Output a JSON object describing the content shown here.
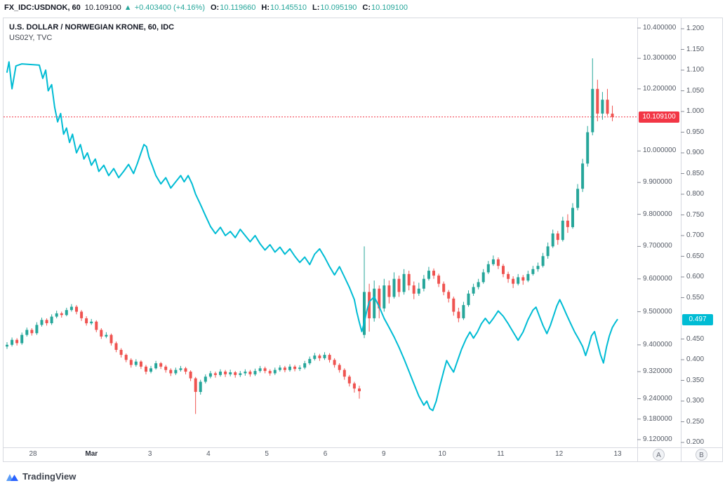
{
  "header": {
    "symbol": "FX_IDC:USDNOK, 60",
    "last_price": "10.109100",
    "change_arrow": "▲",
    "change": "+0.403400 (+4.16%)",
    "ohlc": [
      {
        "label": "O:",
        "value": "10.119660"
      },
      {
        "label": "H:",
        "value": "10.145510"
      },
      {
        "label": "L:",
        "value": "10.095190"
      },
      {
        "label": "C:",
        "value": "10.109100"
      }
    ]
  },
  "legend": {
    "line1": "U.S. DOLLAR / NORWEGIAN KRONE, 60, IDC",
    "line2": "US02Y, TVC"
  },
  "axis_buttons": {
    "a": "A",
    "b": "B"
  },
  "footer": {
    "logo_text": "TradingView"
  },
  "chart_data": {
    "type": "candlestick+line",
    "title": "U.S. DOLLAR / NORWEGIAN KRONE, 60, IDC",
    "overlay_series_name": "US02Y, TVC",
    "colors": {
      "up": "#26a69a",
      "down": "#ef5350",
      "line": "#00bcd4",
      "last_line": "#f23645"
    },
    "y_axis_a": {
      "scale": "log",
      "range": [
        9.12,
        10.4
      ],
      "labels": [
        [
          "10.400000",
          10.4
        ],
        [
          "10.300000",
          10.3
        ],
        [
          "10.200000",
          10.2
        ],
        [
          "10.000000",
          10.0
        ],
        [
          "9.900000",
          9.9
        ],
        [
          "9.800000",
          9.8
        ],
        [
          "9.700000",
          9.7
        ],
        [
          "9.600000",
          9.6
        ],
        [
          "9.500000",
          9.5
        ],
        [
          "9.400000",
          9.4
        ],
        [
          "9.320000",
          9.32
        ],
        [
          "9.240000",
          9.24
        ],
        [
          "9.180000",
          9.18
        ],
        [
          "9.120000",
          9.12
        ]
      ]
    },
    "y_axis_b": {
      "scale": "linear",
      "range": [
        0.2,
        1.2
      ],
      "labels": [
        [
          "1.200",
          1.2
        ],
        [
          "1.150",
          1.15
        ],
        [
          "1.100",
          1.1
        ],
        [
          "1.050",
          1.05
        ],
        [
          "1.000",
          1.0
        ],
        [
          "0.950",
          0.95
        ],
        [
          "0.900",
          0.9
        ],
        [
          "0.850",
          0.85
        ],
        [
          "0.800",
          0.8
        ],
        [
          "0.750",
          0.75
        ],
        [
          "0.700",
          0.7
        ],
        [
          "0.650",
          0.65
        ],
        [
          "0.600",
          0.6
        ],
        [
          "0.550",
          0.55
        ],
        [
          "0.450",
          0.45
        ],
        [
          "0.400",
          0.4
        ],
        [
          "0.350",
          0.35
        ],
        [
          "0.300",
          0.3
        ],
        [
          "0.250",
          0.25
        ],
        [
          "0.200",
          0.2
        ]
      ]
    },
    "x_axis": {
      "labels": [
        "28",
        "Mar",
        "3",
        "4",
        "5",
        "6",
        "9",
        "10",
        "11",
        "12",
        "13"
      ]
    },
    "last_price": {
      "label": "10.109100",
      "value": 10.1091
    },
    "line_badge": {
      "label": "0.497",
      "value": 0.497
    },
    "candles": [
      [
        9.395,
        9.408,
        9.388,
        9.4
      ],
      [
        9.4,
        9.422,
        9.395,
        9.415
      ],
      [
        9.415,
        9.42,
        9.398,
        9.405
      ],
      [
        9.405,
        9.437,
        9.4,
        9.43
      ],
      [
        9.43,
        9.452,
        9.425,
        9.445
      ],
      [
        9.445,
        9.45,
        9.428,
        9.435
      ],
      [
        9.435,
        9.468,
        9.43,
        9.46
      ],
      [
        9.46,
        9.482,
        9.455,
        9.475
      ],
      [
        9.475,
        9.48,
        9.458,
        9.465
      ],
      [
        9.465,
        9.492,
        9.46,
        9.485
      ],
      [
        9.485,
        9.503,
        9.48,
        9.495
      ],
      [
        9.495,
        9.5,
        9.482,
        9.49
      ],
      [
        9.49,
        9.512,
        9.486,
        9.505
      ],
      [
        9.505,
        9.523,
        9.5,
        9.515
      ],
      [
        9.515,
        9.52,
        9.492,
        9.5
      ],
      [
        9.5,
        9.505,
        9.472,
        9.48
      ],
      [
        9.48,
        9.486,
        9.458,
        9.465
      ],
      [
        9.465,
        9.478,
        9.46,
        9.47
      ],
      [
        9.47,
        9.474,
        9.438,
        9.445
      ],
      [
        9.445,
        9.45,
        9.418,
        9.425
      ],
      [
        9.425,
        9.438,
        9.42,
        9.43
      ],
      [
        9.43,
        9.434,
        9.398,
        9.405
      ],
      [
        9.405,
        9.41,
        9.378,
        9.385
      ],
      [
        9.385,
        9.39,
        9.362,
        9.37
      ],
      [
        9.37,
        9.374,
        9.348,
        9.355
      ],
      [
        9.355,
        9.36,
        9.332,
        9.34
      ],
      [
        9.34,
        9.357,
        9.335,
        9.35
      ],
      [
        9.35,
        9.354,
        9.328,
        9.335
      ],
      [
        9.335,
        9.34,
        9.312,
        9.32
      ],
      [
        9.32,
        9.337,
        9.315,
        9.33
      ],
      [
        9.33,
        9.352,
        9.326,
        9.345
      ],
      [
        9.345,
        9.349,
        9.328,
        9.335
      ],
      [
        9.335,
        9.34,
        9.317,
        9.325
      ],
      [
        9.325,
        9.33,
        9.307,
        9.315
      ],
      [
        9.315,
        9.332,
        9.31,
        9.325
      ],
      [
        9.325,
        9.337,
        9.32,
        9.33
      ],
      [
        9.33,
        9.334,
        9.312,
        9.32
      ],
      [
        9.32,
        9.324,
        9.292,
        9.3
      ],
      [
        9.3,
        9.304,
        9.195,
        9.26
      ],
      [
        9.26,
        9.296,
        9.252,
        9.29
      ],
      [
        9.29,
        9.312,
        9.285,
        9.305
      ],
      [
        9.305,
        9.322,
        9.3,
        9.315
      ],
      [
        9.315,
        9.32,
        9.302,
        9.31
      ],
      [
        9.31,
        9.327,
        9.305,
        9.32
      ],
      [
        9.32,
        9.325,
        9.304,
        9.312
      ],
      [
        9.312,
        9.326,
        9.306,
        9.318
      ],
      [
        9.318,
        9.322,
        9.302,
        9.31
      ],
      [
        9.31,
        9.322,
        9.304,
        9.315
      ],
      [
        9.315,
        9.327,
        9.308,
        9.32
      ],
      [
        9.32,
        9.325,
        9.305,
        9.312
      ],
      [
        9.312,
        9.329,
        9.307,
        9.322
      ],
      [
        9.322,
        9.337,
        9.317,
        9.33
      ],
      [
        9.33,
        9.335,
        9.315,
        9.322
      ],
      [
        9.322,
        9.327,
        9.308,
        9.315
      ],
      [
        9.315,
        9.332,
        9.31,
        9.325
      ],
      [
        9.325,
        9.339,
        9.32,
        9.332
      ],
      [
        9.332,
        9.337,
        9.318,
        9.325
      ],
      [
        9.325,
        9.342,
        9.32,
        9.335
      ],
      [
        9.335,
        9.34,
        9.321,
        9.328
      ],
      [
        9.328,
        9.339,
        9.322,
        9.332
      ],
      [
        9.332,
        9.352,
        9.327,
        9.345
      ],
      [
        9.345,
        9.365,
        9.34,
        9.358
      ],
      [
        9.358,
        9.376,
        9.353,
        9.368
      ],
      [
        9.368,
        9.373,
        9.352,
        9.36
      ],
      [
        9.36,
        9.378,
        9.355,
        9.37
      ],
      [
        9.37,
        9.375,
        9.347,
        9.355
      ],
      [
        9.355,
        9.36,
        9.332,
        9.34
      ],
      [
        9.34,
        9.345,
        9.317,
        9.325
      ],
      [
        9.325,
        9.33,
        9.296,
        9.305
      ],
      [
        9.305,
        9.31,
        9.276,
        9.285
      ],
      [
        9.285,
        9.29,
        9.258,
        9.27
      ],
      [
        9.27,
        9.278,
        9.24,
        9.262
      ],
      [
        9.43,
        9.7,
        9.42,
        9.56
      ],
      [
        9.56,
        9.585,
        9.44,
        9.48
      ],
      [
        9.48,
        9.595,
        9.47,
        9.57
      ],
      [
        9.57,
        9.58,
        9.48,
        9.51
      ],
      [
        9.51,
        9.6,
        9.5,
        9.58
      ],
      [
        9.58,
        9.595,
        9.525,
        9.545
      ],
      [
        9.545,
        9.62,
        9.54,
        9.6
      ],
      [
        9.6,
        9.61,
        9.545,
        9.56
      ],
      [
        9.56,
        9.63,
        9.552,
        9.615
      ],
      [
        9.615,
        9.625,
        9.565,
        9.58
      ],
      [
        9.58,
        9.592,
        9.538,
        9.555
      ],
      [
        9.555,
        9.588,
        9.548,
        9.57
      ],
      [
        9.57,
        9.612,
        9.562,
        9.6
      ],
      [
        9.6,
        9.637,
        9.595,
        9.625
      ],
      [
        9.625,
        9.632,
        9.6,
        9.61
      ],
      [
        9.61,
        9.616,
        9.575,
        9.585
      ],
      [
        9.585,
        9.592,
        9.55,
        9.56
      ],
      [
        9.56,
        9.566,
        9.528,
        9.54
      ],
      [
        9.54,
        9.546,
        9.488,
        9.5
      ],
      [
        9.5,
        9.512,
        9.468,
        9.48
      ],
      [
        9.48,
        9.53,
        9.475,
        9.52
      ],
      [
        9.52,
        9.565,
        9.515,
        9.555
      ],
      [
        9.555,
        9.585,
        9.548,
        9.575
      ],
      [
        9.575,
        9.6,
        9.568,
        9.59
      ],
      [
        9.59,
        9.63,
        9.585,
        9.62
      ],
      [
        9.62,
        9.655,
        9.615,
        9.645
      ],
      [
        9.645,
        9.672,
        9.64,
        9.66
      ],
      [
        9.66,
        9.666,
        9.63,
        9.64
      ],
      [
        9.64,
        9.646,
        9.605,
        9.615
      ],
      [
        9.615,
        9.622,
        9.588,
        9.6
      ],
      [
        9.6,
        9.608,
        9.572,
        9.585
      ],
      [
        9.585,
        9.615,
        9.58,
        9.605
      ],
      [
        9.605,
        9.612,
        9.582,
        9.595
      ],
      [
        9.595,
        9.625,
        9.59,
        9.615
      ],
      [
        9.615,
        9.64,
        9.61,
        9.63
      ],
      [
        9.63,
        9.65,
        9.622,
        9.64
      ],
      [
        9.64,
        9.68,
        9.635,
        9.67
      ],
      [
        9.67,
        9.712,
        9.662,
        9.7
      ],
      [
        9.7,
        9.752,
        9.695,
        9.74
      ],
      [
        9.74,
        9.748,
        9.705,
        9.72
      ],
      [
        9.72,
        9.792,
        9.715,
        9.78
      ],
      [
        9.78,
        9.8,
        9.742,
        9.76
      ],
      [
        9.76,
        9.835,
        9.755,
        9.82
      ],
      [
        9.82,
        9.895,
        9.812,
        9.88
      ],
      [
        9.88,
        9.975,
        9.87,
        9.96
      ],
      [
        9.96,
        10.08,
        9.95,
        10.06
      ],
      [
        10.06,
        10.3,
        10.05,
        10.2
      ],
      [
        10.2,
        10.23,
        10.095,
        10.12
      ],
      [
        10.12,
        10.19,
        10.1,
        10.165
      ],
      [
        10.165,
        10.2,
        10.113,
        10.1197
      ],
      [
        10.1197,
        10.1455,
        10.0952,
        10.1091
      ]
    ],
    "line_points": [
      [
        0,
        1.095
      ],
      [
        0.4,
        1.12
      ],
      [
        1,
        1.055
      ],
      [
        1.8,
        1.11
      ],
      [
        3,
        1.115
      ],
      [
        6.5,
        1.112
      ],
      [
        7.2,
        1.08
      ],
      [
        7.8,
        1.1
      ],
      [
        8.3,
        1.05
      ],
      [
        9,
        1.065
      ],
      [
        9.6,
        1.01
      ],
      [
        10.2,
        0.975
      ],
      [
        10.8,
        0.995
      ],
      [
        11.4,
        0.945
      ],
      [
        12,
        0.96
      ],
      [
        12.6,
        0.925
      ],
      [
        13.2,
        0.945
      ],
      [
        14,
        0.9
      ],
      [
        14.8,
        0.92
      ],
      [
        15.5,
        0.885
      ],
      [
        16.2,
        0.9
      ],
      [
        17,
        0.87
      ],
      [
        17.8,
        0.885
      ],
      [
        18.5,
        0.855
      ],
      [
        19.5,
        0.87
      ],
      [
        20.5,
        0.845
      ],
      [
        21.5,
        0.862
      ],
      [
        22.5,
        0.84
      ],
      [
        23.5,
        0.855
      ],
      [
        24.5,
        0.872
      ],
      [
        25.5,
        0.85
      ],
      [
        26.3,
        0.875
      ],
      [
        27,
        0.9
      ],
      [
        27.6,
        0.92
      ],
      [
        28.1,
        0.915
      ],
      [
        28.6,
        0.89
      ],
      [
        29.3,
        0.868
      ],
      [
        30,
        0.845
      ],
      [
        31,
        0.825
      ],
      [
        32,
        0.84
      ],
      [
        33,
        0.815
      ],
      [
        34,
        0.83
      ],
      [
        35,
        0.845
      ],
      [
        35.7,
        0.83
      ],
      [
        36.5,
        0.845
      ],
      [
        37.3,
        0.825
      ],
      [
        38,
        0.8
      ],
      [
        39,
        0.775
      ],
      [
        40,
        0.748
      ],
      [
        41,
        0.722
      ],
      [
        42,
        0.705
      ],
      [
        43,
        0.72
      ],
      [
        44,
        0.7
      ],
      [
        45,
        0.71
      ],
      [
        46,
        0.695
      ],
      [
        47,
        0.715
      ],
      [
        48,
        0.7
      ],
      [
        49,
        0.685
      ],
      [
        50,
        0.7
      ],
      [
        51,
        0.68
      ],
      [
        52,
        0.665
      ],
      [
        53,
        0.678
      ],
      [
        54,
        0.66
      ],
      [
        55,
        0.672
      ],
      [
        56,
        0.655
      ],
      [
        57,
        0.668
      ],
      [
        58,
        0.65
      ],
      [
        59,
        0.635
      ],
      [
        60,
        0.648
      ],
      [
        61,
        0.63
      ],
      [
        62,
        0.655
      ],
      [
        63,
        0.668
      ],
      [
        64,
        0.648
      ],
      [
        65,
        0.625
      ],
      [
        66,
        0.605
      ],
      [
        67,
        0.625
      ],
      [
        68,
        0.6
      ],
      [
        69,
        0.575
      ],
      [
        70,
        0.545
      ],
      [
        70.5,
        0.515
      ],
      [
        71,
        0.49
      ],
      [
        71.5,
        0.468
      ],
      [
        72,
        0.49
      ],
      [
        72.5,
        0.518
      ],
      [
        73,
        0.54
      ],
      [
        74,
        0.552
      ],
      [
        75,
        0.528
      ],
      [
        76,
        0.5
      ],
      [
        77,
        0.478
      ],
      [
        78,
        0.455
      ],
      [
        79,
        0.43
      ],
      [
        80,
        0.402
      ],
      [
        81,
        0.372
      ],
      [
        82,
        0.342
      ],
      [
        83,
        0.312
      ],
      [
        84,
        0.29
      ],
      [
        84.6,
        0.3
      ],
      [
        85.2,
        0.282
      ],
      [
        85.8,
        0.277
      ],
      [
        86.5,
        0.3
      ],
      [
        87.2,
        0.335
      ],
      [
        88,
        0.372
      ],
      [
        88.6,
        0.398
      ],
      [
        89.2,
        0.385
      ],
      [
        90,
        0.37
      ],
      [
        90.8,
        0.398
      ],
      [
        91.6,
        0.425
      ],
      [
        92.5,
        0.45
      ],
      [
        93.3,
        0.467
      ],
      [
        94,
        0.452
      ],
      [
        94.8,
        0.467
      ],
      [
        95.6,
        0.487
      ],
      [
        96.4,
        0.5
      ],
      [
        97.2,
        0.487
      ],
      [
        98,
        0.5
      ],
      [
        99,
        0.518
      ],
      [
        100,
        0.505
      ],
      [
        101,
        0.487
      ],
      [
        102,
        0.467
      ],
      [
        103,
        0.447
      ],
      [
        104,
        0.467
      ],
      [
        105,
        0.497
      ],
      [
        106,
        0.52
      ],
      [
        106.6,
        0.527
      ],
      [
        107.3,
        0.505
      ],
      [
        108,
        0.483
      ],
      [
        108.8,
        0.463
      ],
      [
        109.5,
        0.483
      ],
      [
        110.2,
        0.508
      ],
      [
        110.8,
        0.53
      ],
      [
        111.4,
        0.545
      ],
      [
        112,
        0.53
      ],
      [
        112.8,
        0.508
      ],
      [
        113.6,
        0.487
      ],
      [
        114.4,
        0.467
      ],
      [
        115.2,
        0.45
      ],
      [
        116,
        0.432
      ],
      [
        116.6,
        0.41
      ],
      [
        117.2,
        0.432
      ],
      [
        117.8,
        0.458
      ],
      [
        118.4,
        0.468
      ],
      [
        119,
        0.44
      ],
      [
        119.6,
        0.412
      ],
      [
        120.2,
        0.392
      ],
      [
        120.8,
        0.43
      ],
      [
        121.4,
        0.458
      ],
      [
        122,
        0.478
      ],
      [
        122.6,
        0.49
      ],
      [
        123,
        0.497
      ]
    ]
  }
}
